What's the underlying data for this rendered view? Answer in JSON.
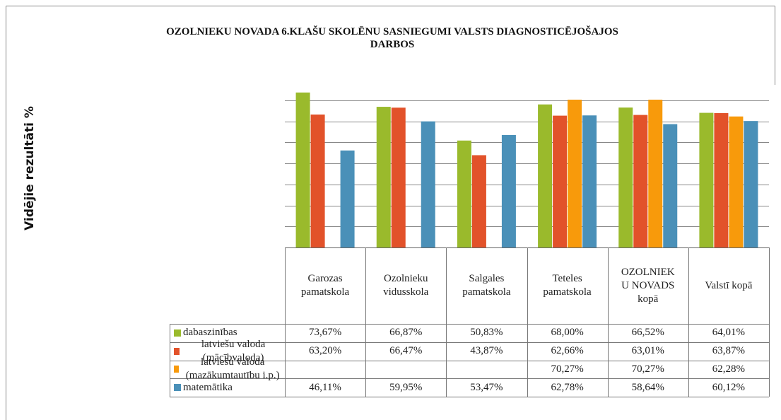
{
  "chart_data": {
    "type": "bar",
    "title": "OZOLNIEKU NOVADA 6.KLAŠU SKOLĒNU SASNIEGUMI VALSTS DIAGNOSTICĒJOŠAJOS DARBOS",
    "y_label": "Vidējie rezultāti %",
    "categories": [
      "Garozas pamatskola",
      "Ozolnieku vidusskola",
      "Salgales pamatskola",
      "Teteles pamatskola",
      "OZOLNIEKU NOVADS kopā",
      "Valstī kopā"
    ],
    "series": [
      {
        "name": "dabaszinības",
        "color": "#9aba2c",
        "values": [
          73.67,
          66.87,
          50.83,
          68.0,
          66.52,
          64.01
        ],
        "value_labels": [
          "73,67%",
          "66,87%",
          "50,83%",
          "68,00%",
          "66,52%",
          "64,01%"
        ]
      },
      {
        "name": "latviešu valoda (mācībvaloda)",
        "color": "#e2522a",
        "values": [
          63.2,
          66.47,
          43.87,
          62.66,
          63.01,
          63.87
        ],
        "value_labels": [
          "63,20%",
          "66,47%",
          "43,87%",
          "62,66%",
          "63,01%",
          "63,87%"
        ]
      },
      {
        "name": "latviešu valoda (mazākumtautību i.p.)",
        "color": "#f89a0b",
        "values": [
          null,
          null,
          null,
          70.27,
          70.27,
          62.28
        ],
        "value_labels": [
          null,
          null,
          null,
          "70,27%",
          "70,27%",
          "62,28%"
        ]
      },
      {
        "name": "matemātika",
        "color": "#4a90b8",
        "values": [
          46.11,
          59.95,
          53.47,
          62.78,
          58.64,
          60.12
        ],
        "value_labels": [
          "46,11%",
          "59,95%",
          "53,47%",
          "62,78%",
          "58,64%",
          "60,12%"
        ]
      }
    ],
    "ylim": [
      0,
      80
    ],
    "yticks": [
      0,
      10,
      20,
      30,
      40,
      50,
      60,
      70
    ],
    "grid": true
  }
}
